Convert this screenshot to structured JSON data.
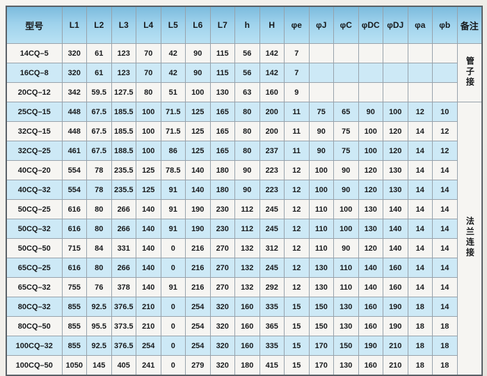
{
  "table": {
    "columns": [
      "型号",
      "L1",
      "L2",
      "L3",
      "L4",
      "L5",
      "L6",
      "L7",
      "h",
      "H",
      "φe",
      "φJ",
      "φC",
      "φDC",
      "φDJ",
      "φa",
      "φb",
      "备注"
    ],
    "rows": [
      {
        "model": "14CQ–5",
        "values": [
          "320",
          "61",
          "123",
          "70",
          "42",
          "90",
          "115",
          "56",
          "142",
          "7",
          "",
          "",
          "",
          "",
          "",
          ""
        ]
      },
      {
        "model": "16CQ–8",
        "values": [
          "320",
          "61",
          "123",
          "70",
          "42",
          "90",
          "115",
          "56",
          "142",
          "7",
          "",
          "",
          "",
          "",
          "",
          ""
        ]
      },
      {
        "model": "20CQ–12",
        "values": [
          "342",
          "59.5",
          "127.5",
          "80",
          "51",
          "100",
          "130",
          "63",
          "160",
          "9",
          "",
          "",
          "",
          "",
          "",
          ""
        ]
      },
      {
        "model": "25CQ–15",
        "values": [
          "448",
          "67.5",
          "185.5",
          "100",
          "71.5",
          "125",
          "165",
          "80",
          "200",
          "11",
          "75",
          "65",
          "90",
          "100",
          "12",
          "10"
        ]
      },
      {
        "model": "32CQ–15",
        "values": [
          "448",
          "67.5",
          "185.5",
          "100",
          "71.5",
          "125",
          "165",
          "80",
          "200",
          "11",
          "90",
          "75",
          "100",
          "120",
          "14",
          "12"
        ]
      },
      {
        "model": "32CQ–25",
        "values": [
          "461",
          "67.5",
          "188.5",
          "100",
          "86",
          "125",
          "165",
          "80",
          "237",
          "11",
          "90",
          "75",
          "100",
          "120",
          "14",
          "12"
        ]
      },
      {
        "model": "40CQ–20",
        "values": [
          "554",
          "78",
          "235.5",
          "125",
          "78.5",
          "140",
          "180",
          "90",
          "223",
          "12",
          "100",
          "90",
          "120",
          "130",
          "14",
          "14"
        ]
      },
      {
        "model": "40CQ–32",
        "values": [
          "554",
          "78",
          "235.5",
          "125",
          "91",
          "140",
          "180",
          "90",
          "223",
          "12",
          "100",
          "90",
          "120",
          "130",
          "14",
          "14"
        ]
      },
      {
        "model": "50CQ–25",
        "values": [
          "616",
          "80",
          "266",
          "140",
          "91",
          "190",
          "230",
          "112",
          "245",
          "12",
          "110",
          "100",
          "130",
          "140",
          "14",
          "14"
        ]
      },
      {
        "model": "50CQ–32",
        "values": [
          "616",
          "80",
          "266",
          "140",
          "91",
          "190",
          "230",
          "112",
          "245",
          "12",
          "110",
          "100",
          "130",
          "140",
          "14",
          "14"
        ]
      },
      {
        "model": "50CQ–50",
        "values": [
          "715",
          "84",
          "331",
          "140",
          "0",
          "216",
          "270",
          "132",
          "312",
          "12",
          "110",
          "90",
          "120",
          "140",
          "14",
          "14"
        ]
      },
      {
        "model": "65CQ–25",
        "values": [
          "616",
          "80",
          "266",
          "140",
          "0",
          "216",
          "270",
          "132",
          "245",
          "12",
          "130",
          "110",
          "140",
          "160",
          "14",
          "14"
        ]
      },
      {
        "model": "65CQ–32",
        "values": [
          "755",
          "76",
          "378",
          "140",
          "91",
          "216",
          "270",
          "132",
          "292",
          "12",
          "130",
          "110",
          "140",
          "160",
          "14",
          "14"
        ]
      },
      {
        "model": "80CQ–32",
        "values": [
          "855",
          "92.5",
          "376.5",
          "210",
          "0",
          "254",
          "320",
          "160",
          "335",
          "15",
          "150",
          "130",
          "160",
          "190",
          "18",
          "14"
        ]
      },
      {
        "model": "80CQ–50",
        "values": [
          "855",
          "95.5",
          "373.5",
          "210",
          "0",
          "254",
          "320",
          "160",
          "365",
          "15",
          "150",
          "130",
          "160",
          "190",
          "18",
          "18"
        ]
      },
      {
        "model": "100CQ–32",
        "values": [
          "855",
          "92.5",
          "376.5",
          "254",
          "0",
          "254",
          "320",
          "160",
          "335",
          "15",
          "170",
          "150",
          "190",
          "210",
          "18",
          "18"
        ]
      },
      {
        "model": "100CQ–50",
        "values": [
          "1050",
          "145",
          "405",
          "241",
          "0",
          "279",
          "320",
          "180",
          "415",
          "15",
          "170",
          "130",
          "160",
          "210",
          "18",
          "18"
        ]
      }
    ],
    "remark_groups": [
      {
        "label": "管子接",
        "rows": 3
      },
      {
        "label": "法兰连接",
        "rows": 14
      }
    ]
  },
  "colors": {
    "header_blue_top": "#7cbbdd",
    "header_blue_bottom": "#b9e1f3",
    "row_blue": "#cde9f6",
    "row_light": "#f6f5f2",
    "grid_line": "#97a2ab",
    "outer_border": "#5a6167"
  }
}
